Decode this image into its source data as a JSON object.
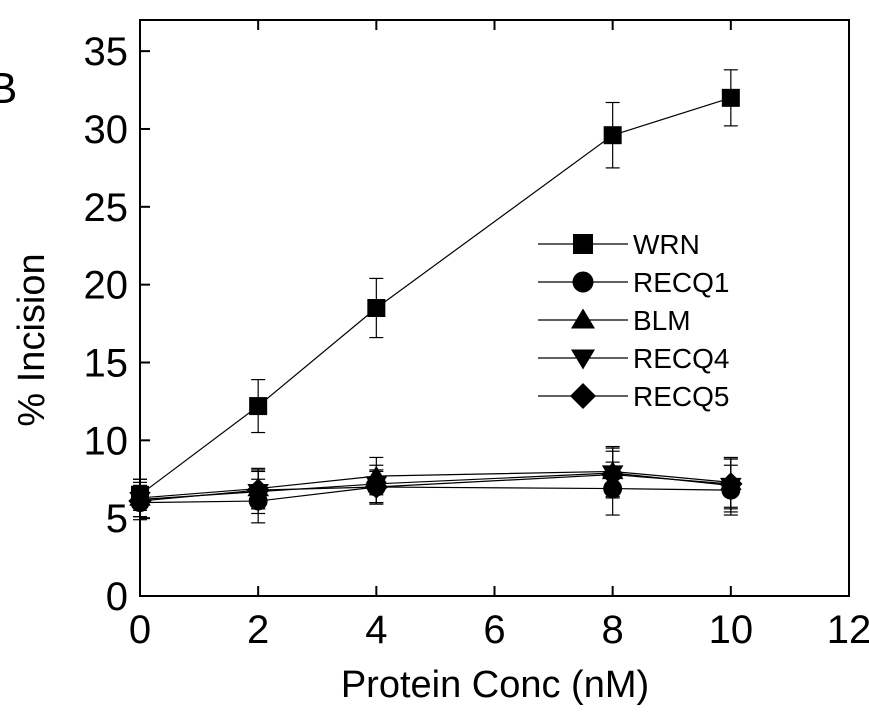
{
  "panel_label": "B",
  "colors": {
    "ink": "#000000",
    "background": "#ffffff"
  },
  "chart_data": {
    "type": "line",
    "xlabel": "Protein Conc (nM)",
    "ylabel": "% Incision",
    "xlim": [
      0,
      12
    ],
    "ylim": [
      0,
      37
    ],
    "xticks": [
      "0",
      "2",
      "4",
      "6",
      "8",
      "10",
      "12"
    ],
    "yticks": [
      "0",
      "5",
      "10",
      "15",
      "20",
      "25",
      "30",
      "35"
    ],
    "grid": false,
    "legend_position": "center-right",
    "x": [
      0,
      2,
      4,
      8,
      10
    ],
    "series": [
      {
        "name": "WRN",
        "marker": "square",
        "values": [
          6.5,
          12.2,
          18.5,
          29.6,
          32.0
        ],
        "errors": [
          1.0,
          1.7,
          1.9,
          2.1,
          1.8
        ]
      },
      {
        "name": "RECQ1",
        "marker": "circle",
        "values": [
          6.0,
          6.1,
          7.0,
          6.9,
          6.8
        ],
        "errors": [
          1.1,
          1.4,
          1.1,
          1.7,
          1.6
        ]
      },
      {
        "name": "BLM",
        "marker": "triangle-up",
        "values": [
          6.3,
          6.9,
          7.7,
          8.0,
          7.3
        ],
        "errors": [
          1.2,
          1.3,
          1.2,
          1.6,
          1.6
        ]
      },
      {
        "name": "RECQ4",
        "marker": "triangle-down",
        "values": [
          6.2,
          6.7,
          7.2,
          7.9,
          7.1
        ],
        "errors": [
          1.1,
          1.4,
          1.2,
          1.6,
          1.7
        ]
      },
      {
        "name": "RECQ5",
        "marker": "diamond",
        "values": [
          6.1,
          6.8,
          7.0,
          7.8,
          7.2
        ],
        "errors": [
          1.0,
          1.2,
          1.0,
          1.5,
          1.6
        ]
      }
    ]
  }
}
